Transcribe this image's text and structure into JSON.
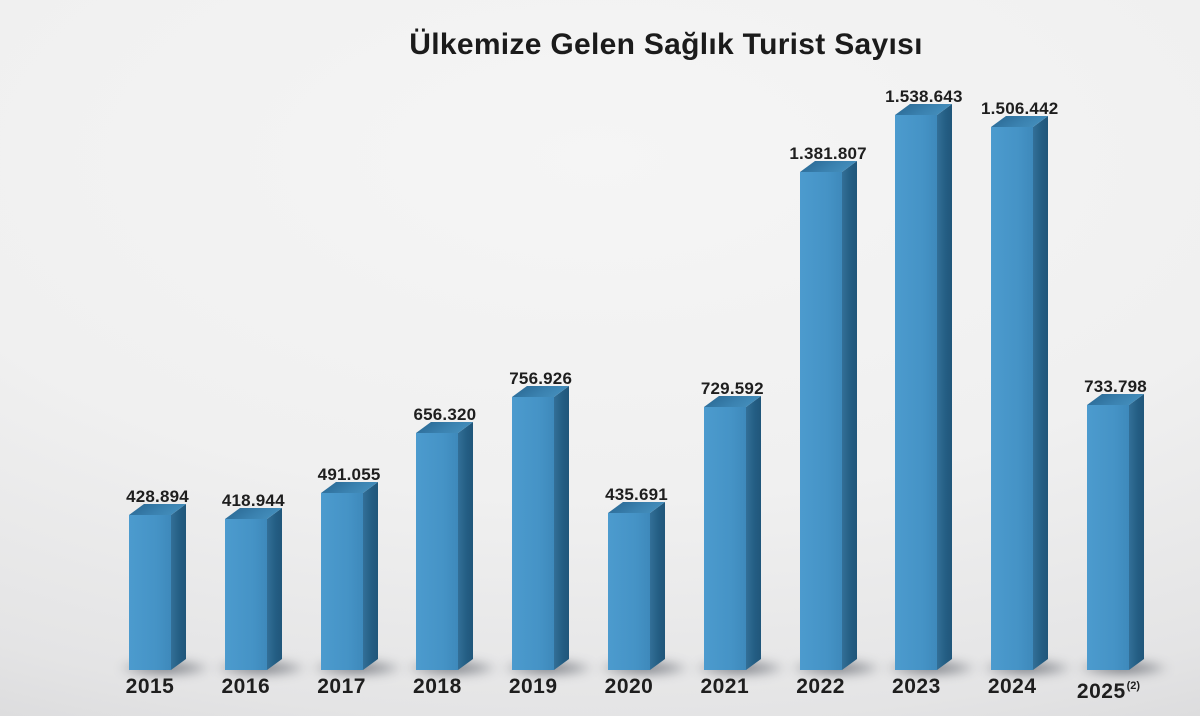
{
  "chart_data": {
    "type": "bar",
    "title": "Ülkemize Gelen Sağlık Turist Sayısı",
    "xlabel": "",
    "ylabel": "",
    "ylim": [
      0,
      1600000
    ],
    "grid": false,
    "legend": "none",
    "style": "3d-extruded-bars-with-ground-shadow",
    "value_label_format": "thousands-dot",
    "categories": [
      "2015",
      "2016",
      "2017",
      "2018",
      "2019",
      "2020",
      "2021",
      "2022",
      "2023",
      "2024",
      "2025"
    ],
    "bars": [
      {
        "year": "2015",
        "value": 428894,
        "label": "428.894"
      },
      {
        "year": "2016",
        "value": 418944,
        "label": "418.944"
      },
      {
        "year": "2017",
        "value": 491055,
        "label": "491.055"
      },
      {
        "year": "2018",
        "value": 656320,
        "label": "656.320"
      },
      {
        "year": "2019",
        "value": 756926,
        "label": "756.926"
      },
      {
        "year": "2020",
        "value": 435691,
        "label": "435.691"
      },
      {
        "year": "2021",
        "value": 729592,
        "label": "729.592"
      },
      {
        "year": "2022",
        "value": 1381807,
        "label": "1.381.807"
      },
      {
        "year": "2023",
        "value": 1538643,
        "label": "1.538.643"
      },
      {
        "year": "2024",
        "value": 1506442,
        "label": "1.506.442"
      },
      {
        "year": "2025",
        "value": 733798,
        "label": "733.798",
        "year_note": "(2)"
      }
    ],
    "colors": {
      "bar_front": "#4593c6",
      "bar_side": "#245e84",
      "bar_top": "#3a81af",
      "shadow": "rgba(30,36,48,0.58)",
      "text": "#1e1e1e",
      "background_light": "#f5f5f5",
      "background_dark": "#cfcfd1"
    }
  }
}
